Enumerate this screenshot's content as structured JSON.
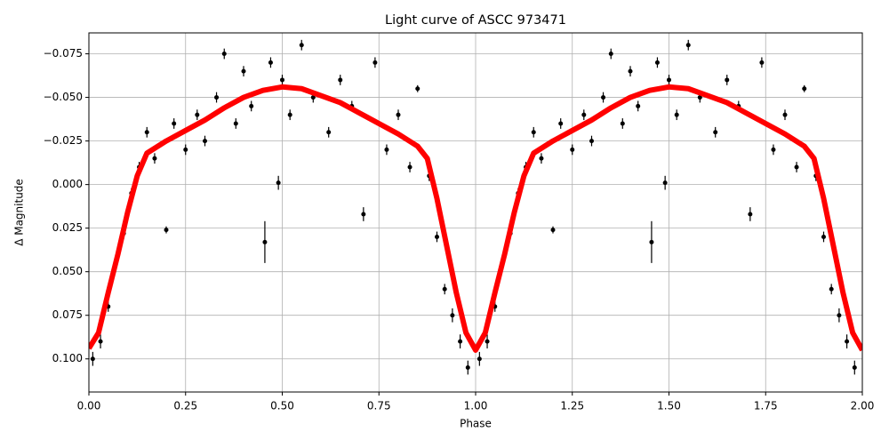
{
  "chart_data": {
    "type": "errorbar-line",
    "title": "Light curve of ASCC 973471",
    "xlabel": "Phase",
    "ylabel": "Δ Magnitude",
    "xlim": [
      0,
      2
    ],
    "ylim": [
      0.119,
      -0.087
    ],
    "grid": true,
    "xticks": [
      {
        "value": 0,
        "label": "0.00"
      },
      {
        "value": 0.25,
        "label": "0.25"
      },
      {
        "value": 0.5,
        "label": "0.50"
      },
      {
        "value": 0.75,
        "label": "0.75"
      },
      {
        "value": 1,
        "label": "1.00"
      },
      {
        "value": 1.25,
        "label": "1.25"
      },
      {
        "value": 1.5,
        "label": "1.50"
      },
      {
        "value": 1.75,
        "label": "1.75"
      },
      {
        "value": 2,
        "label": "2.00"
      }
    ],
    "yticks": [
      {
        "value": -0.075,
        "label": "−0.075"
      },
      {
        "value": -0.05,
        "label": "−0.050"
      },
      {
        "value": -0.025,
        "label": "−0.025"
      },
      {
        "value": 0,
        "label": "0.000"
      },
      {
        "value": 0.025,
        "label": "0.025"
      },
      {
        "value": 0.05,
        "label": "0.050"
      },
      {
        "value": 0.075,
        "label": "0.075"
      },
      {
        "value": 0.1,
        "label": "0.100"
      }
    ],
    "series": [
      {
        "type": "errorbar",
        "color": "#000000",
        "x": [
          0.01,
          0.03,
          0.05,
          0.07,
          0.09,
          0.11,
          0.13,
          0.15,
          0.17,
          0.2,
          0.22,
          0.25,
          0.28,
          0.3,
          0.33,
          0.35,
          0.38,
          0.4,
          0.42,
          0.455,
          0.47,
          0.49,
          0.5,
          0.52,
          0.55,
          0.58,
          0.62,
          0.65,
          0.68,
          0.71,
          0.74,
          0.77,
          0.8,
          0.83,
          0.85,
          0.88,
          0.9,
          0.92,
          0.94,
          0.96,
          0.98,
          1.01,
          1.03,
          1.05,
          1.07,
          1.09,
          1.11,
          1.13,
          1.15,
          1.17,
          1.2,
          1.22,
          1.25,
          1.28,
          1.3,
          1.33,
          1.35,
          1.38,
          1.4,
          1.42,
          1.455,
          1.47,
          1.49,
          1.5,
          1.52,
          1.55,
          1.58,
          1.62,
          1.65,
          1.68,
          1.71,
          1.74,
          1.77,
          1.8,
          1.83,
          1.85,
          1.88,
          1.9,
          1.92,
          1.94,
          1.96,
          1.98
        ],
        "values": [
          0.1,
          0.09,
          0.07,
          0.045,
          0.028,
          0.005,
          -0.01,
          -0.03,
          -0.015,
          0.026,
          -0.035,
          -0.02,
          -0.04,
          -0.025,
          -0.05,
          -0.075,
          -0.035,
          -0.065,
          -0.045,
          0.033,
          -0.07,
          -0.001,
          -0.06,
          -0.04,
          -0.08,
          -0.05,
          -0.03,
          -0.06,
          -0.045,
          0.017,
          -0.07,
          -0.02,
          -0.04,
          -0.01,
          -0.055,
          -0.005,
          0.03,
          0.06,
          0.075,
          0.09,
          0.105,
          0.1,
          0.09,
          0.07,
          0.045,
          0.028,
          0.005,
          -0.01,
          -0.03,
          -0.015,
          0.026,
          -0.035,
          -0.02,
          -0.04,
          -0.025,
          -0.05,
          -0.075,
          -0.035,
          -0.065,
          -0.045,
          0.033,
          -0.07,
          -0.001,
          -0.06,
          -0.04,
          -0.08,
          -0.05,
          -0.03,
          -0.06,
          -0.045,
          0.017,
          -0.07,
          -0.02,
          -0.04,
          -0.01,
          -0.055,
          -0.005,
          0.03,
          0.06,
          0.075,
          0.09,
          0.105
        ],
        "errors": [
          0.004,
          0.004,
          0.003,
          0.003,
          0.003,
          0.003,
          0.003,
          0.003,
          0.003,
          0.002,
          0.003,
          0.003,
          0.003,
          0.003,
          0.003,
          0.003,
          0.003,
          0.003,
          0.003,
          0.012,
          0.003,
          0.004,
          0.003,
          0.003,
          0.003,
          0.003,
          0.003,
          0.003,
          0.003,
          0.004,
          0.003,
          0.003,
          0.003,
          0.003,
          0.002,
          0.003,
          0.003,
          0.003,
          0.004,
          0.004,
          0.004,
          0.004,
          0.004,
          0.003,
          0.003,
          0.003,
          0.003,
          0.003,
          0.003,
          0.003,
          0.002,
          0.003,
          0.003,
          0.003,
          0.003,
          0.003,
          0.003,
          0.003,
          0.003,
          0.003,
          0.012,
          0.003,
          0.004,
          0.003,
          0.003,
          0.003,
          0.003,
          0.003,
          0.003,
          0.003,
          0.004,
          0.003,
          0.003,
          0.003,
          0.003,
          0.002,
          0.003,
          0.003,
          0.003,
          0.004,
          0.004,
          0.004
        ]
      },
      {
        "type": "line",
        "color": "#ff0000",
        "x": [
          0,
          0.025,
          0.05,
          0.075,
          0.1,
          0.125,
          0.15,
          0.2,
          0.25,
          0.3,
          0.35,
          0.4,
          0.45,
          0.5,
          0.55,
          0.6,
          0.65,
          0.7,
          0.75,
          0.8,
          0.85,
          0.875,
          0.9,
          0.925,
          0.95,
          0.975,
          1,
          1.025,
          1.05,
          1.075,
          1.1,
          1.125,
          1.15,
          1.2,
          1.25,
          1.3,
          1.35,
          1.4,
          1.45,
          1.5,
          1.55,
          1.6,
          1.65,
          1.7,
          1.75,
          1.8,
          1.85,
          1.875,
          1.9,
          1.925,
          1.95,
          1.975,
          2
        ],
        "values": [
          0.094,
          0.085,
          0.062,
          0.04,
          0.016,
          -0.005,
          -0.018,
          -0.025,
          -0.031,
          -0.037,
          -0.044,
          -0.05,
          -0.054,
          -0.056,
          -0.055,
          -0.051,
          -0.047,
          -0.041,
          -0.035,
          -0.029,
          -0.022,
          -0.015,
          0.008,
          0.035,
          0.062,
          0.085,
          0.095,
          0.085,
          0.062,
          0.04,
          0.016,
          -0.005,
          -0.018,
          -0.025,
          -0.031,
          -0.037,
          -0.044,
          -0.05,
          -0.054,
          -0.056,
          -0.055,
          -0.051,
          -0.047,
          -0.041,
          -0.035,
          -0.029,
          -0.022,
          -0.015,
          0.008,
          0.035,
          0.062,
          0.085,
          0.095
        ]
      }
    ]
  }
}
